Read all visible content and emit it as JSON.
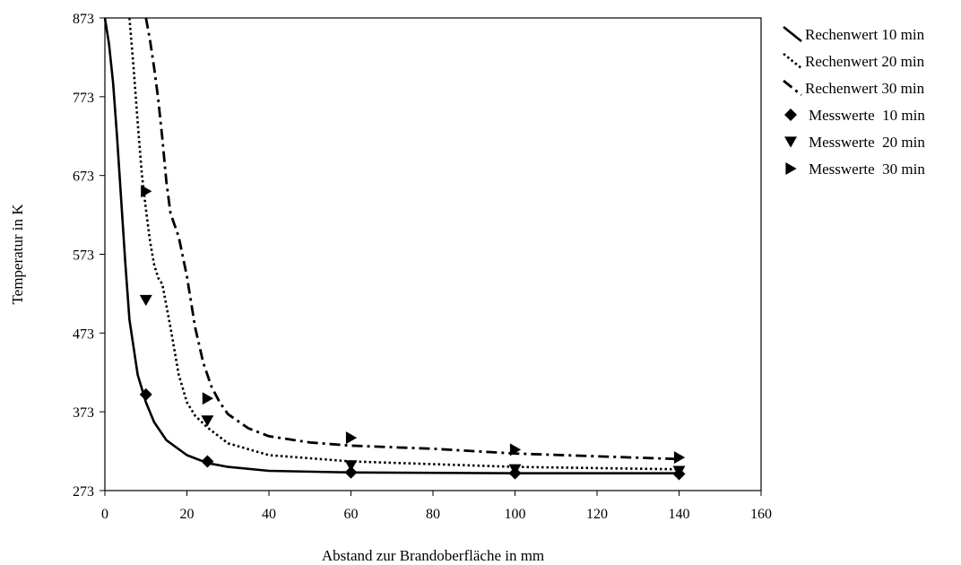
{
  "chart_data": {
    "type": "line",
    "title": "",
    "xlabel": "Abstand zur Brandoberfläche in mm",
    "ylabel": "Temperatur in K",
    "xlim": [
      0,
      160
    ],
    "ylim": [
      273,
      873
    ],
    "xticks": [
      0,
      20,
      40,
      60,
      80,
      100,
      120,
      140,
      160
    ],
    "yticks": [
      273,
      373,
      473,
      573,
      673,
      773,
      873
    ],
    "grid": false,
    "legend_position": "right",
    "series": [
      {
        "name": "Rechenwert 10 min",
        "kind": "line",
        "style": "solid",
        "x": [
          0,
          1,
          2,
          3,
          4,
          5,
          6,
          8,
          10,
          12,
          15,
          20,
          25,
          30,
          40,
          60,
          100,
          140
        ],
        "y": [
          873,
          840,
          790,
          720,
          640,
          560,
          490,
          420,
          385,
          360,
          337,
          318,
          308,
          303,
          298,
          296,
          295,
          295
        ]
      },
      {
        "name": "Rechenwert 20 min",
        "kind": "line",
        "style": "dotted",
        "x": [
          6,
          7,
          8,
          9,
          10,
          11,
          12,
          13,
          14,
          16,
          18,
          20,
          22,
          25,
          30,
          40,
          60,
          100,
          140
        ],
        "y": [
          873,
          810,
          740,
          675,
          630,
          590,
          560,
          543,
          535,
          480,
          420,
          385,
          368,
          353,
          333,
          318,
          310,
          303,
          300
        ]
      },
      {
        "name": "Rechenwert 30 min",
        "kind": "line",
        "style": "dash-dot",
        "x": [
          10,
          11,
          12,
          13,
          14,
          15,
          16,
          18,
          20,
          22,
          24,
          26,
          28,
          30,
          35,
          40,
          50,
          60,
          80,
          100,
          140
        ],
        "y": [
          873,
          845,
          810,
          770,
          720,
          665,
          625,
          595,
          545,
          480,
          435,
          405,
          385,
          370,
          352,
          342,
          334,
          330,
          326,
          320,
          313
        ]
      },
      {
        "name": "Messwerte  10 min",
        "kind": "marker",
        "marker": "diamond",
        "x": [
          10,
          25,
          60,
          100,
          140
        ],
        "y": [
          395,
          310,
          296,
          295,
          294
        ]
      },
      {
        "name": "Messwerte  20 min",
        "kind": "marker",
        "marker": "triangle-down",
        "x": [
          10,
          25,
          60,
          100,
          140
        ],
        "y": [
          515,
          362,
          305,
          300,
          298
        ]
      },
      {
        "name": "Messwerte  30 min",
        "kind": "marker",
        "marker": "triangle-right",
        "x": [
          10,
          25,
          60,
          100,
          140
        ],
        "y": [
          653,
          390,
          340,
          325,
          315
        ]
      }
    ]
  }
}
